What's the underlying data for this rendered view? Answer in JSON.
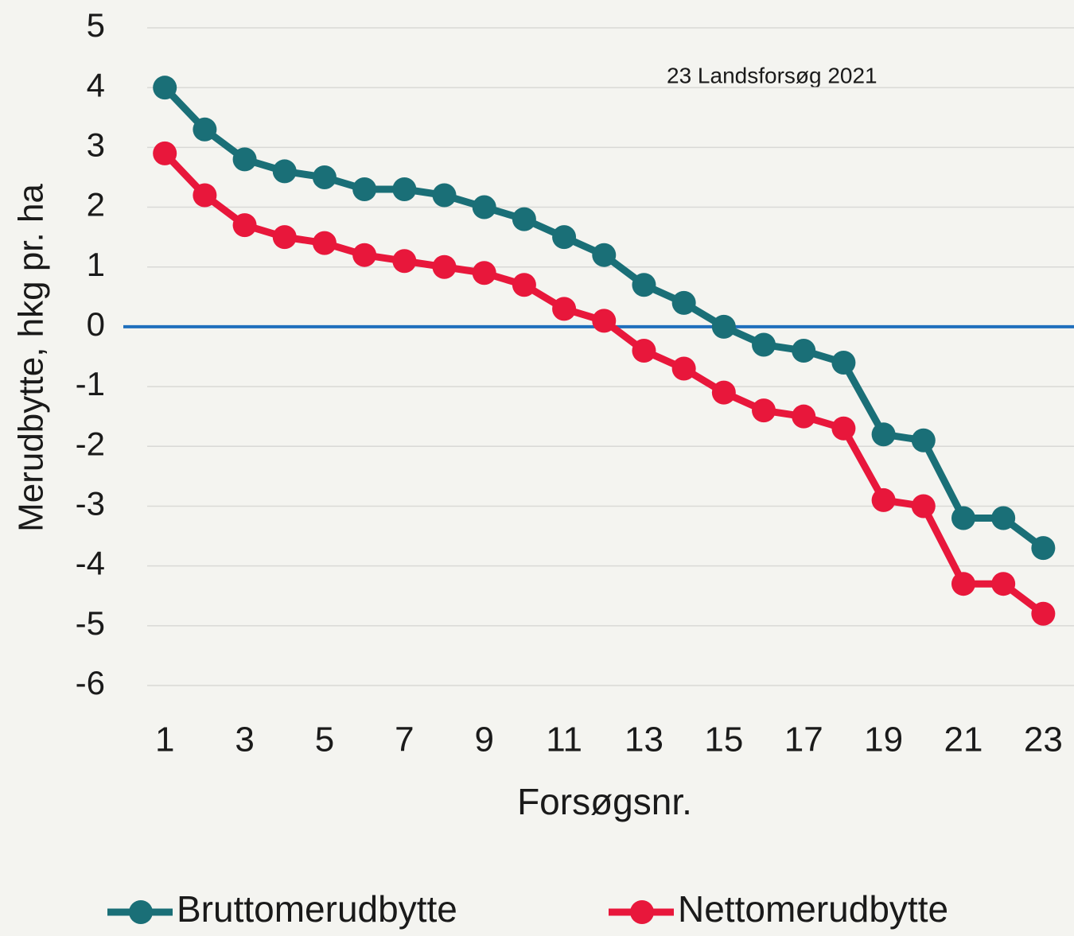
{
  "chart_data": {
    "type": "line",
    "annotation": "23 Landsforsøg 2021",
    "x_label": "Forsøgsnr.",
    "y_label": "Merudbytte, hkg pr. ha",
    "x": [
      1,
      2,
      3,
      4,
      5,
      6,
      7,
      8,
      9,
      10,
      11,
      12,
      13,
      14,
      15,
      16,
      17,
      18,
      19,
      20,
      21,
      22,
      23
    ],
    "xlim": [
      0,
      23.75
    ],
    "xticks": [
      1,
      3,
      5,
      7,
      9,
      11,
      13,
      15,
      17,
      19,
      21,
      23
    ],
    "ylim": [
      -6,
      5
    ],
    "yticks": [
      -6,
      -5,
      -4,
      -3,
      -2,
      -1,
      0,
      1,
      2,
      3,
      4,
      5
    ],
    "grid": true,
    "zero_line_color": "#1f6fbd",
    "legend": "bottom",
    "series": [
      {
        "name": "Bruttomerudbytte",
        "color": "#1a6f77",
        "values": [
          4.0,
          3.3,
          2.8,
          2.6,
          2.5,
          2.3,
          2.3,
          2.2,
          2.0,
          1.8,
          1.5,
          1.2,
          0.7,
          0.4,
          0.0,
          -0.3,
          -0.4,
          -0.6,
          -1.8,
          -1.9,
          -3.2,
          -3.2,
          -3.7
        ]
      },
      {
        "name": "Nettomerudbytte",
        "color": "#e8173b",
        "values": [
          2.9,
          2.2,
          1.7,
          1.5,
          1.4,
          1.2,
          1.1,
          1.0,
          0.9,
          0.7,
          0.3,
          0.1,
          -0.4,
          -0.7,
          -1.1,
          -1.4,
          -1.5,
          -1.7,
          -2.9,
          -3.0,
          -4.3,
          -4.3,
          -4.8
        ]
      }
    ]
  }
}
